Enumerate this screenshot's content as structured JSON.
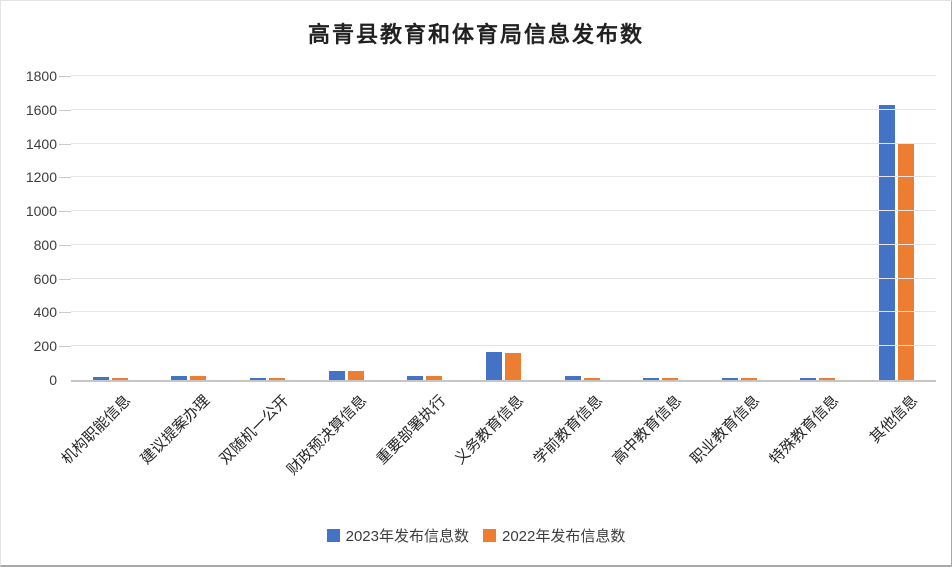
{
  "chart_data": {
    "type": "bar",
    "title": "高青县教育和体育局信息发布数",
    "categories": [
      "机构职能信息",
      "建议提案办理",
      "双随机一公开",
      "财政预决算信息",
      "重要部署执行",
      "义务教育信息",
      "学前教育信息",
      "高中教育信息",
      "职业教育信息",
      "特殊教育信息",
      "其他信息"
    ],
    "series": [
      {
        "name": "2023年发布信息数",
        "color": "#4472C4",
        "values": [
          20,
          22,
          14,
          55,
          22,
          165,
          23,
          13,
          10,
          10,
          1630
        ]
      },
      {
        "name": "2022年发布信息数",
        "color": "#ED7D31",
        "values": [
          13,
          22,
          10,
          55,
          26,
          162,
          12,
          13,
          10,
          8,
          1400
        ]
      }
    ],
    "xlabel": "",
    "ylabel": "",
    "ylim": [
      0,
      1800
    ],
    "yticks": [
      0,
      200,
      400,
      600,
      800,
      1000,
      1200,
      1400,
      1600,
      1800
    ],
    "grid": true,
    "legend_position": "bottom"
  }
}
